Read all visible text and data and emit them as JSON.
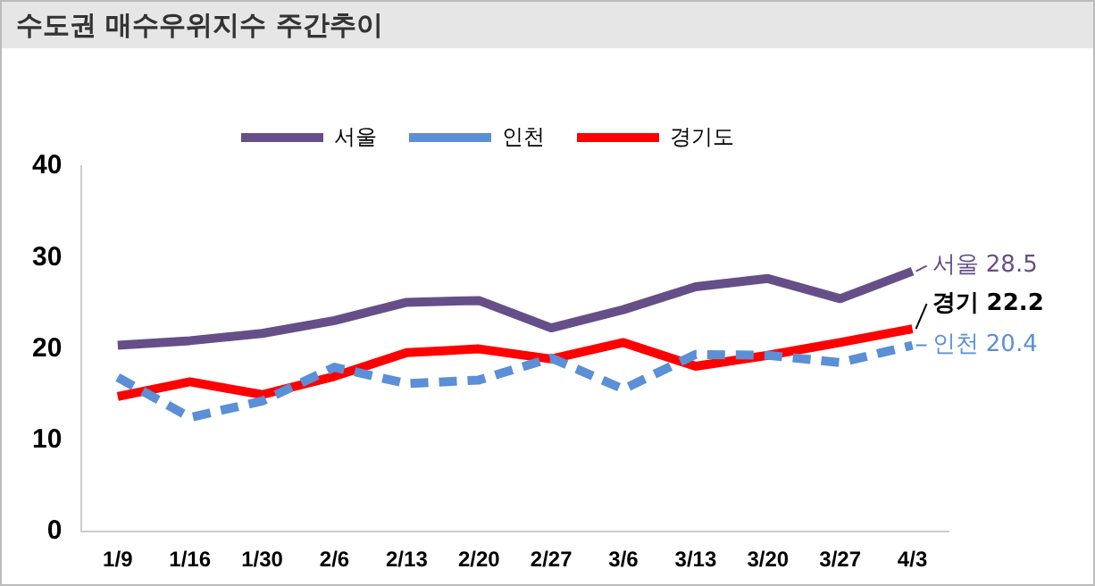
{
  "chart_data": {
    "type": "line",
    "title": "수도권 매수우위지수 주간추이",
    "categories": [
      "1/9",
      "1/16",
      "1/30",
      "2/6",
      "2/13",
      "2/20",
      "2/27",
      "3/6",
      "3/13",
      "3/20",
      "3/27",
      "4/3"
    ],
    "series": [
      {
        "name": "서울",
        "color": "#664f88",
        "line_style": "solid",
        "values": [
          20.4,
          20.9,
          21.7,
          23.1,
          25.1,
          25.3,
          22.3,
          24.3,
          26.8,
          27.7,
          25.5,
          28.5
        ]
      },
      {
        "name": "인천",
        "color": "#5b8fd6",
        "line_style": "dashed",
        "values": [
          16.9,
          12.5,
          14.3,
          18.0,
          16.2,
          16.6,
          19.0,
          15.6,
          19.4,
          19.3,
          18.5,
          20.4
        ]
      },
      {
        "name": "경기도",
        "color": "#ff0000",
        "line_style": "solid",
        "values": [
          14.8,
          16.4,
          15.0,
          17.0,
          19.6,
          20.0,
          18.9,
          20.7,
          18.1,
          19.3,
          20.7,
          22.2
        ]
      }
    ],
    "annotations": [
      {
        "text": "서울 28.5",
        "x": "4/3",
        "y": 28.5
      },
      {
        "text": "인천 20.4",
        "x": "4/3",
        "y": 20.4
      },
      {
        "text": "경기 22.2",
        "x": "4/3",
        "y": 22.2
      }
    ],
    "ylim": [
      0,
      40
    ],
    "yticks": [
      0,
      10,
      20,
      30,
      40
    ],
    "grid": false,
    "legend": "top",
    "marker": "none"
  }
}
